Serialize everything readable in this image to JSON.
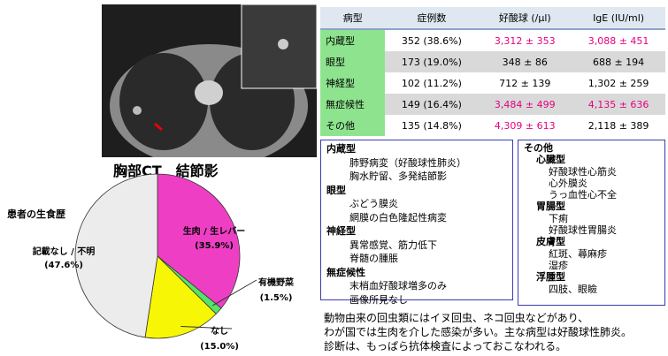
{
  "image": {
    "caption": "胸部CT　結節影"
  },
  "chart_data": {
    "type": "pie",
    "title": "患者の生食歴",
    "categories": [
      "生肉 / 生レバー",
      "有機野菜",
      "なし",
      "記載なし / 不明"
    ],
    "values": [
      35.9,
      1.5,
      15.0,
      47.6
    ],
    "value_labels": [
      "(35.9%)",
      "(1.5%)",
      "(15.0%)",
      "(47.6%)"
    ],
    "colors": [
      "#ee3fc4",
      "#55e36a",
      "#f7f705",
      "#ececec"
    ]
  },
  "table": {
    "header": [
      "病型",
      "症例数",
      "好酸球 (/μl)",
      "IgE (IU/ml)"
    ],
    "rows": [
      [
        {
          "text": "内蔵型",
          "color": "#000000"
        },
        {
          "text": "352 (38.6%)",
          "color": "#000000"
        },
        {
          "text": "3,312 ± 353",
          "color": "#e6007e"
        },
        {
          "text": "3,088 ± 451",
          "color": "#e6007e"
        }
      ],
      [
        {
          "text": "眼型",
          "color": "#000000"
        },
        {
          "text": "173 (19.0%)",
          "color": "#000000"
        },
        {
          "text": "348 ± 86",
          "color": "#000000"
        },
        {
          "text": "688 ± 194",
          "color": "#000000"
        }
      ],
      [
        {
          "text": "神経型",
          "color": "#000000"
        },
        {
          "text": "102 (11.2%)",
          "color": "#000000"
        },
        {
          "text": "712 ± 139",
          "color": "#000000"
        },
        {
          "text": "1,302 ± 259",
          "color": "#000000"
        }
      ],
      [
        {
          "text": "無症候性",
          "color": "#000000"
        },
        {
          "text": "149 (16.4%)",
          "color": "#000000"
        },
        {
          "text": "3,484 ± 499",
          "color": "#e6007e"
        },
        {
          "text": "4,135 ± 636",
          "color": "#e6007e"
        }
      ],
      [
        {
          "text": "その他",
          "color": "#000000"
        },
        {
          "text": "135 (14.8%)",
          "color": "#000000"
        },
        {
          "text": "4,309 ± 613",
          "color": "#e6007e"
        },
        {
          "text": "2,118 ± 389",
          "color": "#000000"
        }
      ]
    ]
  },
  "box1": {
    "groups": [
      {
        "heading": "内蔵型",
        "items": [
          "肺野病変（好酸球性肺炎）",
          "胸水貯留、多発結節影"
        ]
      },
      {
        "heading": "眼型",
        "items": [
          "ぶどう膜炎",
          "網膜の白色隆起性病変"
        ]
      },
      {
        "heading": "神経型",
        "items": [
          "異常感覚、筋力低下",
          "脊髄の腫脹"
        ]
      },
      {
        "heading": "無症候性",
        "items": [
          "末梢血好酸球増多のみ",
          "画像所見なし"
        ]
      }
    ]
  },
  "box2": {
    "heading": "その他",
    "groups": [
      {
        "heading": "心臓型",
        "items": [
          "好酸球性心筋炎",
          "心外膜炎",
          "うっ血性心不全"
        ]
      },
      {
        "heading": "胃腸型",
        "items": [
          "下痢",
          "好酸球性胃腸炎"
        ]
      },
      {
        "heading": "皮膚型",
        "items": [
          "紅斑、蕁麻疹",
          "湿疹"
        ]
      },
      {
        "heading": "浮腫型",
        "items": [
          "四肢、眼瞼"
        ]
      }
    ]
  },
  "notes": [
    "動物由来の回虫類にはイヌ回虫、ネコ回虫などがあり、",
    "わが国では生肉を介した感染が多い。主な病型は好酸球性肺炎。",
    "診断は、もっぱら抗体検査によっておこなわれる。"
  ]
}
